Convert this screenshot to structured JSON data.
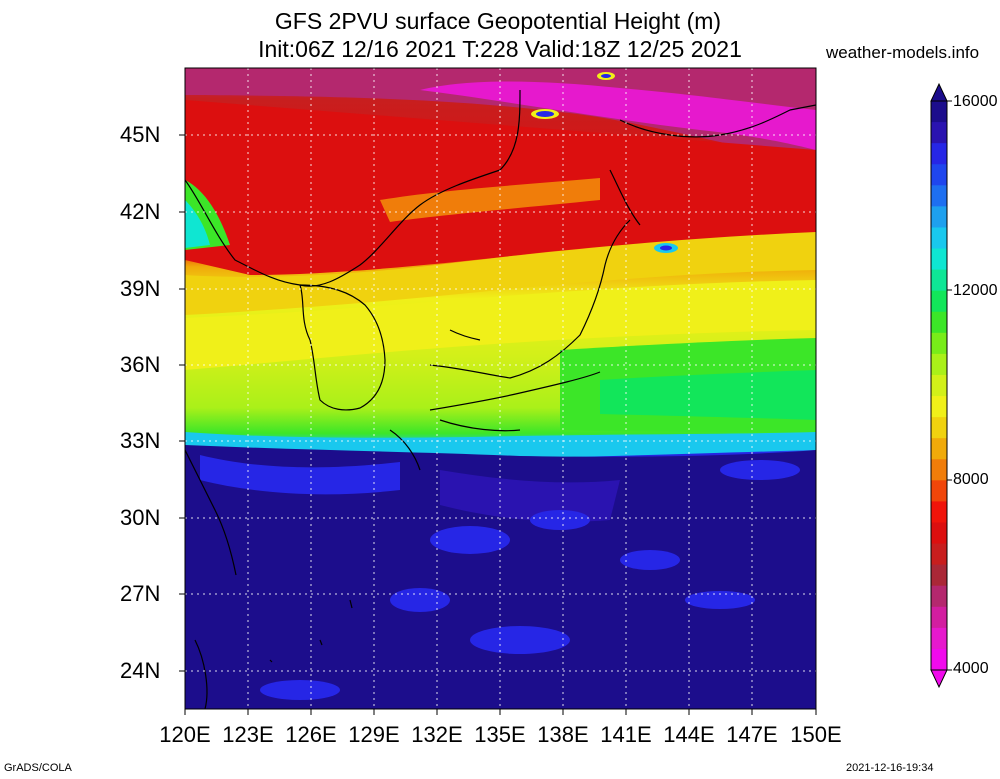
{
  "title_line1": "GFS 2PVU surface Geopotential Height (m)",
  "title_line2": "Init:06Z 12/16 2021 T:228 Valid:18Z 12/25 2021",
  "site": "weather-models.info",
  "footer_left": "GrADS/COLA",
  "footer_right": "2021-12-16-19:34",
  "lat_labels": [
    "45N",
    "42N",
    "39N",
    "36N",
    "33N",
    "30N",
    "27N",
    "24N"
  ],
  "lon_labels": [
    "120E",
    "123E",
    "126E",
    "129E",
    "132E",
    "135E",
    "138E",
    "141E",
    "144E",
    "147E",
    "150E"
  ],
  "colorbar": {
    "labels": [
      "16000",
      "12000",
      "8000",
      "4000"
    ],
    "colors": [
      "#1c0d8c",
      "#2a13b0",
      "#2626e6",
      "#1f46ee",
      "#1e6ff0",
      "#1ea0ee",
      "#19c8ee",
      "#0fe6d2",
      "#0fe696",
      "#12e65a",
      "#3ce628",
      "#78ec19",
      "#aaf019",
      "#d2f019",
      "#f0f019",
      "#f0d20f",
      "#f0aa0a",
      "#f07d0a",
      "#f0460a",
      "#f0140a",
      "#dc0f0f",
      "#c81e1e",
      "#aa2837",
      "#b4286e",
      "#d21ea0",
      "#e619cd",
      "#f00aec"
    ]
  }
}
